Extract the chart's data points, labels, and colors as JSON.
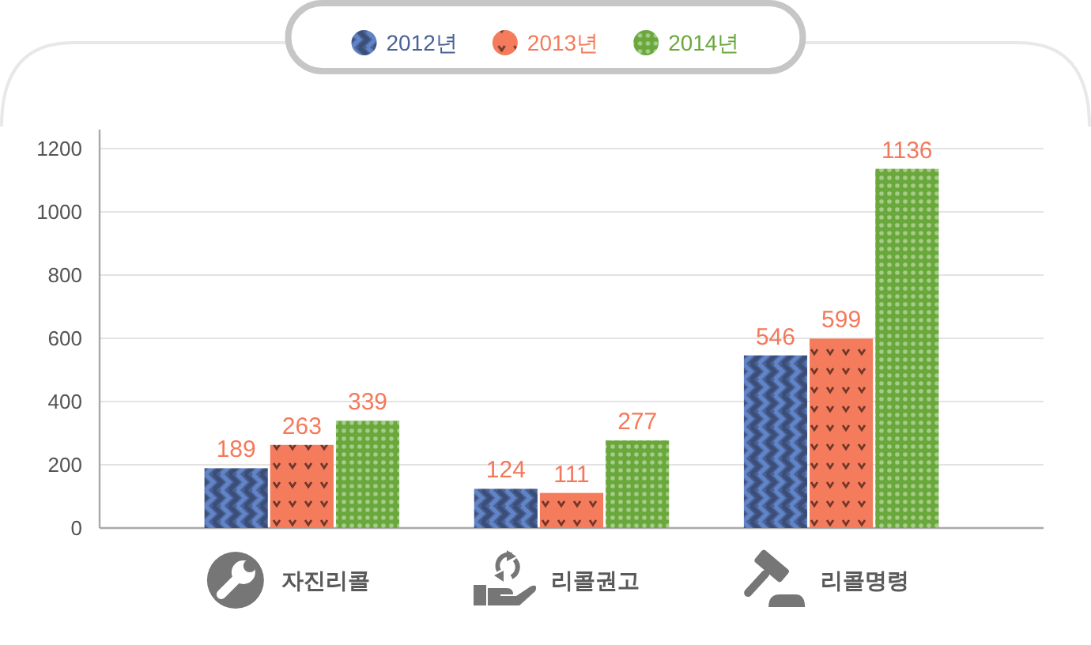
{
  "chart_data": {
    "type": "bar",
    "categories": [
      "자진리콜",
      "리콜권고",
      "리콜명령"
    ],
    "series": [
      {
        "name": "2012년",
        "color": "#4a6196",
        "values": [
          189,
          124,
          546
        ]
      },
      {
        "name": "2013년",
        "color": "#f47b5c",
        "values": [
          263,
          111,
          599
        ]
      },
      {
        "name": "2014년",
        "color": "#6aa83c",
        "values": [
          339,
          277,
          1136
        ]
      }
    ],
    "ylim": [
      0,
      1260
    ],
    "yticks": [
      0,
      200,
      400,
      600,
      800,
      1000,
      1200
    ],
    "grid": "y",
    "legend": "top",
    "data_labels": true
  }
}
